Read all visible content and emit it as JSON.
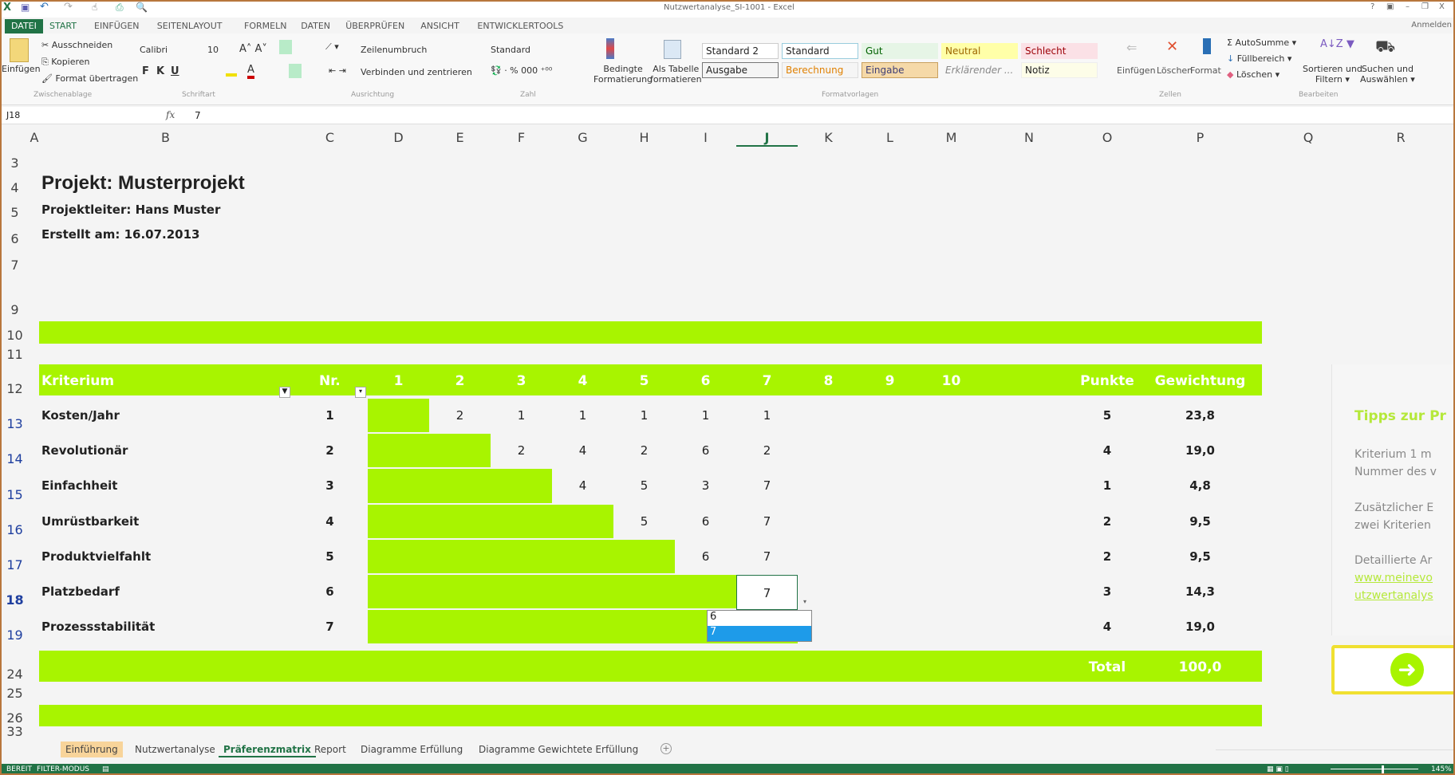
{
  "window": {
    "title": "Nutzwertanalyse_SI-1001 - Excel",
    "help": "?",
    "minimize": "–",
    "maximize": "❐",
    "close": "X",
    "signin": "Anmelden"
  },
  "colors": {
    "accent_green": "#a8f400",
    "excel_green": "#217346",
    "selection_blue": "#1e9be9"
  },
  "tabs": [
    "DATEI",
    "START",
    "EINFÜGEN",
    "SEITENLAYOUT",
    "FORMELN",
    "DATEN",
    "ÜBERPRÜFEN",
    "ANSICHT",
    "ENTWICKLERTOOLS"
  ],
  "ribbon": {
    "paste": "Einfügen",
    "cut": "Ausschneiden",
    "copy": "Kopieren",
    "format_painter": "Format übertragen",
    "font": "Calibri",
    "size": "10",
    "bold": "F",
    "italic": "K",
    "underline": "U",
    "wrap": "Zeilenumbruch",
    "merge": "Verbinden und zentrieren",
    "number_format": "Standard",
    "cond_format": [
      "Bedingte",
      "Formatierung"
    ],
    "as_table": [
      "Als Tabelle",
      "formatieren"
    ],
    "styles": [
      "Standard 2",
      "Standard",
      "Gut",
      "Neutral",
      "Schlecht",
      "Ausgabe",
      "Berechnung",
      "Eingabe",
      "Erklärender ...",
      "Notiz"
    ],
    "cells": [
      "Einfügen",
      "Löschen",
      "Format"
    ],
    "autosum": "AutoSumme",
    "fill": "Füllbereich",
    "clear": "Löschen",
    "sort": [
      "Sortieren und",
      "Filtern"
    ],
    "find": [
      "Suchen und",
      "Auswählen"
    ],
    "groups": [
      "Zwischenablage",
      "Schriftart",
      "Ausrichtung",
      "Zahl",
      "Formatvorlagen",
      "Zellen",
      "Bearbeiten"
    ]
  },
  "formula_bar": {
    "name_box": "J18",
    "fx": "fx",
    "value": "7"
  },
  "columns": [
    "A",
    "B",
    "C",
    "D",
    "E",
    "F",
    "G",
    "H",
    "I",
    "J",
    "K",
    "L",
    "M",
    "N",
    "O",
    "P",
    "Q",
    "R"
  ],
  "active_column": "J",
  "rows": [
    "3",
    "4",
    "5",
    "6",
    "7",
    "9",
    "10",
    "11",
    "12",
    "13",
    "14",
    "15",
    "16",
    "17",
    "18",
    "19",
    "24",
    "25",
    "26",
    "33"
  ],
  "sheet": {
    "title": "Projekt: Musterprojekt",
    "leader": "Projektleiter: Hans Muster",
    "created": "Erstellt am: 16.07.2013",
    "headers": {
      "criterion": "Kriterium",
      "nr": "Nr.",
      "cols": [
        "1",
        "2",
        "3",
        "4",
        "5",
        "6",
        "7",
        "8",
        "9",
        "10"
      ],
      "points": "Punkte",
      "weight": "Gewichtung"
    },
    "criteria": [
      {
        "name": "Kosten/Jahr",
        "nr": "1",
        "matrix": [
          "",
          "2",
          "1",
          "1",
          "1",
          "1",
          "1"
        ],
        "points": "5",
        "weight": "23,8"
      },
      {
        "name": "Revolutionär",
        "nr": "2",
        "matrix": [
          "",
          "",
          "2",
          "4",
          "2",
          "6",
          "2"
        ],
        "points": "4",
        "weight": "19,0"
      },
      {
        "name": "Einfachheit",
        "nr": "3",
        "matrix": [
          "",
          "",
          "",
          "4",
          "5",
          "3",
          "7"
        ],
        "points": "1",
        "weight": "4,8"
      },
      {
        "name": "Umrüstbarkeit",
        "nr": "4",
        "matrix": [
          "",
          "",
          "",
          "",
          "5",
          "6",
          "7"
        ],
        "points": "2",
        "weight": "9,5"
      },
      {
        "name": "Produktvielfahlt",
        "nr": "5",
        "matrix": [
          "",
          "",
          "",
          "",
          "",
          "6",
          "7"
        ],
        "points": "2",
        "weight": "9,5"
      },
      {
        "name": "Platzbedarf",
        "nr": "6",
        "matrix": [
          "",
          "",
          "",
          "",
          "",
          "",
          "7"
        ],
        "points": "3",
        "weight": "14,3"
      },
      {
        "name": "Prozessstabilität",
        "nr": "7",
        "matrix": [
          "",
          "",
          "",
          "",
          "",
          "",
          ""
        ],
        "points": "4",
        "weight": "19,0"
      }
    ],
    "total_label": "Total",
    "total_value": "100,0",
    "dropdown": {
      "options": [
        "6",
        "7"
      ],
      "selected": "7"
    }
  },
  "tips": {
    "title": "Tipps zur Pr",
    "lines": [
      "Kriterium 1 m",
      "Nummer des v",
      "Zusätzlicher E",
      "zwei Kriterien",
      "Detaillierte Ar"
    ],
    "links": [
      "www.meinevo",
      "utzwertanalys"
    ]
  },
  "sheet_tabs": [
    "Einführung",
    "Nutzwertanalyse",
    "Präferenzmatrix",
    "Report",
    "Diagramme Erfüllung",
    "Diagramme Gewichtete Erfüllung"
  ],
  "active_sheet": "Präferenzmatrix",
  "status": {
    "ready": "BEREIT",
    "mode": "FILTER-MODUS",
    "zoom": "145%",
    "zoom_level": 145
  }
}
